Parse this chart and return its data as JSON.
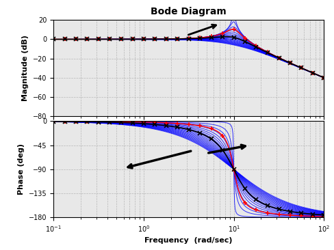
{
  "title": "Bode Diagram",
  "xlabel": "Frequency  (rad/sec)",
  "ylabel_mag": "Magnitude (dB)",
  "ylabel_phase": "Phase (deg)",
  "mag_ylim": [
    -80,
    20
  ],
  "phase_ylim": [
    -180,
    0
  ],
  "freq_lim": [
    0.1,
    100
  ],
  "mag_yticks": [
    20,
    0,
    -20,
    -40,
    -60,
    -80
  ],
  "phase_yticks": [
    0,
    -45,
    -90,
    -135,
    -180
  ],
  "background_color": "#ffffff",
  "grid_color": "#aaaaaa",
  "blue_color": "#0000ff",
  "black_color": "#000000",
  "red_color": "#ff0000",
  "n_blue_lines": 18,
  "omega_n": 10.0,
  "zeta_min": 0.01,
  "zeta_max": 0.99,
  "zeta_red": 0.5,
  "zeta_black_low": 0.3,
  "zeta_black_high": 0.7
}
